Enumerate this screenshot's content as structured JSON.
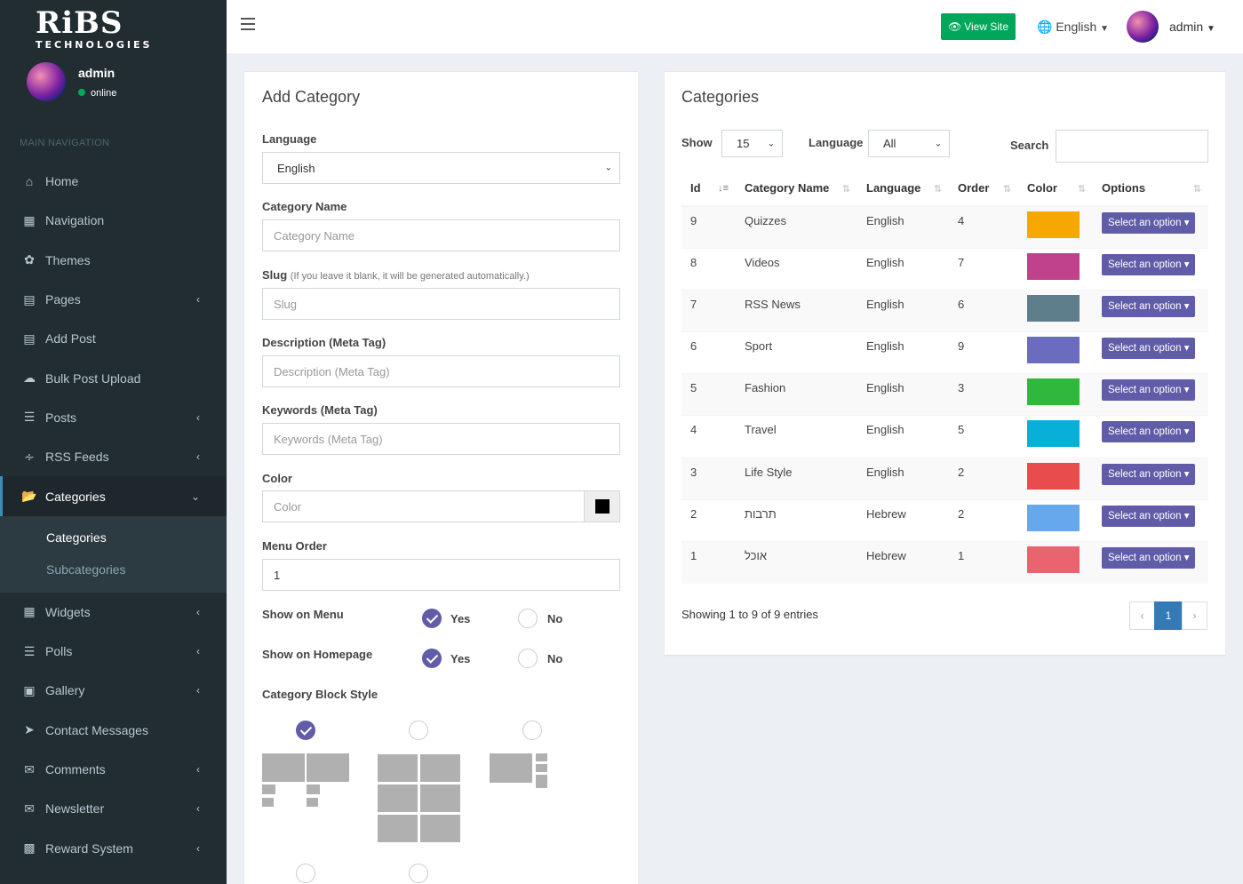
{
  "brand": {
    "line1": "RiBS",
    "line2": "TECHNOLOGIES"
  },
  "user": {
    "name": "admin",
    "status": "online"
  },
  "sidebar": {
    "header": "MAIN NAVIGATION",
    "items": [
      {
        "label": "Home",
        "icon": "home-icon"
      },
      {
        "label": "Navigation",
        "icon": "grid-icon"
      },
      {
        "label": "Themes",
        "icon": "leaf-icon"
      },
      {
        "label": "Pages",
        "icon": "file-icon"
      },
      {
        "label": "Add Post",
        "icon": "file-icon"
      },
      {
        "label": "Bulk Post Upload",
        "icon": "cloud-upload-icon"
      },
      {
        "label": "Posts",
        "icon": "list-icon"
      },
      {
        "label": "RSS Feeds",
        "icon": "rss-icon"
      },
      {
        "label": "Categories",
        "icon": "folder-open-icon"
      },
      {
        "label": "Widgets",
        "icon": "grid-icon"
      },
      {
        "label": "Polls",
        "icon": "list-icon"
      },
      {
        "label": "Gallery",
        "icon": "image-icon"
      },
      {
        "label": "Contact Messages",
        "icon": "paper-plane-icon"
      },
      {
        "label": "Comments",
        "icon": "comments-icon"
      },
      {
        "label": "Newsletter",
        "icon": "envelope-icon"
      },
      {
        "label": "Reward System",
        "icon": "money-icon"
      }
    ],
    "submenu": [
      "Categories",
      "Subcategories"
    ]
  },
  "topbar": {
    "view_site": "View Site",
    "language": "English",
    "user": "admin"
  },
  "form": {
    "title": "Add Category",
    "language_label": "Language",
    "language_value": "English",
    "name_label": "Category Name",
    "name_placeholder": "Category Name",
    "slug_label": "Slug",
    "slug_hint": "(If you leave it blank, it will be generated automatically.)",
    "slug_placeholder": "Slug",
    "desc_label": "Description (Meta Tag)",
    "desc_placeholder": "Description (Meta Tag)",
    "kw_label": "Keywords (Meta Tag)",
    "kw_placeholder": "Keywords (Meta Tag)",
    "color_label": "Color",
    "color_placeholder": "Color",
    "color_swatch": "#000000",
    "order_label": "Menu Order",
    "order_value": "1",
    "show_menu_label": "Show on Menu",
    "show_home_label": "Show on Homepage",
    "yes": "Yes",
    "no": "No",
    "block_label": "Category Block Style"
  },
  "list": {
    "title": "Categories",
    "show_label": "Show",
    "show_value": "15",
    "lang_label": "Language",
    "lang_value": "All",
    "search_label": "Search",
    "columns": [
      "Id",
      "Category Name",
      "Language",
      "Order",
      "Color",
      "Options"
    ],
    "option_label": "Select an option",
    "rows": [
      {
        "id": "9",
        "name": "Quizzes",
        "lang": "English",
        "order": "4",
        "color": "#f7a800"
      },
      {
        "id": "8",
        "name": "Videos",
        "lang": "English",
        "order": "7",
        "color": "#c0418c"
      },
      {
        "id": "7",
        "name": "RSS News",
        "lang": "English",
        "order": "6",
        "color": "#5f7e8c"
      },
      {
        "id": "6",
        "name": "Sport",
        "lang": "English",
        "order": "9",
        "color": "#6b6bbf"
      },
      {
        "id": "5",
        "name": "Fashion",
        "lang": "English",
        "order": "3",
        "color": "#2eb83c"
      },
      {
        "id": "4",
        "name": "Travel",
        "lang": "English",
        "order": "5",
        "color": "#08b0d8"
      },
      {
        "id": "3",
        "name": "Life Style",
        "lang": "English",
        "order": "2",
        "color": "#e84c4c"
      },
      {
        "id": "2",
        "name": "תרבות",
        "lang": "Hebrew",
        "order": "2",
        "color": "#66a8ec"
      },
      {
        "id": "1",
        "name": "אוכל",
        "lang": "Hebrew",
        "order": "1",
        "color": "#e9646e"
      }
    ],
    "showing": "Showing 1 to 9 of 9 entries",
    "page": "1",
    "prev": "‹",
    "next": "›"
  }
}
